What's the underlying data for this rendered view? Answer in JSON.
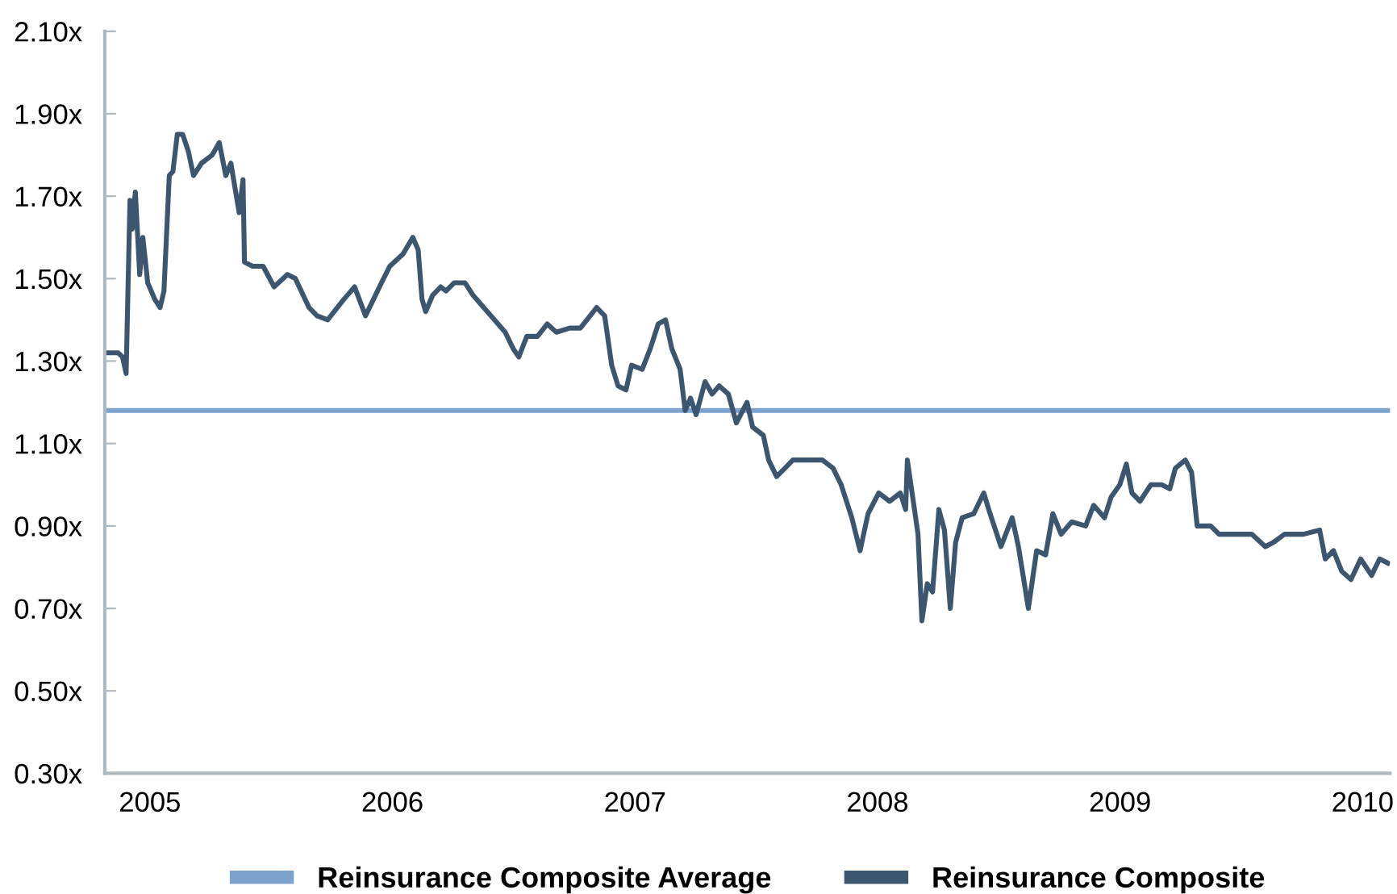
{
  "chart_data": {
    "type": "line",
    "xlim": [
      2004.814,
      2010.113
    ],
    "xticks": [
      2005,
      2006,
      2007,
      2008,
      2009,
      2010
    ],
    "ylim": [
      0.3,
      2.1
    ],
    "yticks": [
      {
        "value": 0.3,
        "label": "0.30x"
      },
      {
        "value": 0.5,
        "label": "0.50x"
      },
      {
        "value": 0.7,
        "label": "0.70x"
      },
      {
        "value": 0.9,
        "label": "0.90x"
      },
      {
        "value": 1.1,
        "label": "1.10x"
      },
      {
        "value": 1.3,
        "label": "1.30x"
      },
      {
        "value": 1.5,
        "label": "1.50x"
      },
      {
        "value": 1.7,
        "label": "1.70x"
      },
      {
        "value": 1.9,
        "label": "1.90x"
      },
      {
        "value": 2.1,
        "label": "2.10x"
      }
    ],
    "grid": false,
    "legend": "bottom",
    "marker": "none",
    "line_style": "solid",
    "series": [
      {
        "name": "Reinsurance Composite Average",
        "color": "#7ba3cc",
        "x": [
          2004.814,
          2010.113
        ],
        "values": [
          1.18,
          1.18
        ]
      },
      {
        "name": "Reinsurance Composite",
        "color": "#3d5670",
        "x": [
          2004.825,
          2004.869,
          2004.887,
          2004.902,
          2004.918,
          2004.927,
          2004.94,
          2004.958,
          2004.971,
          2004.991,
          2005.02,
          2005.042,
          2005.058,
          2005.08,
          2005.095,
          2005.113,
          2005.135,
          2005.158,
          2005.18,
          2005.213,
          2005.235,
          2005.257,
          2005.286,
          2005.313,
          2005.334,
          2005.368,
          2005.384,
          2005.39,
          2005.424,
          2005.467,
          2005.512,
          2005.567,
          2005.6,
          2005.656,
          2005.689,
          2005.733,
          2005.8,
          2005.844,
          2005.889,
          2005.922,
          2005.955,
          2005.989,
          2006.044,
          2006.084,
          2006.106,
          2006.122,
          2006.137,
          2006.166,
          2006.199,
          2006.221,
          2006.255,
          2006.299,
          2006.332,
          2006.376,
          2006.421,
          2006.465,
          2006.498,
          2006.521,
          2006.554,
          2006.598,
          2006.638,
          2006.676,
          2006.731,
          2006.775,
          2006.842,
          2006.875,
          2006.904,
          2006.93,
          2006.963,
          2006.986,
          2007.03,
          2007.063,
          2007.096,
          2007.126,
          2007.152,
          2007.186,
          2007.207,
          2007.229,
          2007.252,
          2007.289,
          2007.318,
          2007.347,
          2007.385,
          2007.418,
          2007.462,
          2007.485,
          2007.529,
          2007.551,
          2007.584,
          2007.618,
          2007.651,
          2007.717,
          2007.773,
          2007.817,
          2007.85,
          2007.894,
          2007.928,
          2007.961,
          2008.005,
          2008.05,
          2008.094,
          2008.116,
          2008.123,
          2008.145,
          2008.167,
          2008.183,
          2008.205,
          2008.227,
          2008.253,
          2008.276,
          2008.3,
          2008.322,
          2008.349,
          2008.397,
          2008.438,
          2008.464,
          2008.509,
          2008.555,
          2008.581,
          2008.622,
          2008.656,
          2008.693,
          2008.723,
          2008.757,
          2008.801,
          2008.858,
          2008.891,
          2008.936,
          2008.963,
          2008.999,
          2009.026,
          2009.049,
          2009.082,
          2009.127,
          2009.172,
          2009.205,
          2009.228,
          2009.269,
          2009.295,
          2009.318,
          2009.374,
          2009.408,
          2009.453,
          2009.487,
          2009.543,
          2009.599,
          2009.632,
          2009.678,
          2009.756,
          2009.823,
          2009.846,
          2009.88,
          2009.914,
          2009.952,
          2009.992,
          2010.037,
          2010.07,
          2010.104
        ],
        "values": [
          1.32,
          1.32,
          1.31,
          1.27,
          1.69,
          1.62,
          1.71,
          1.51,
          1.6,
          1.49,
          1.45,
          1.43,
          1.47,
          1.75,
          1.76,
          1.85,
          1.85,
          1.81,
          1.75,
          1.78,
          1.79,
          1.8,
          1.83,
          1.75,
          1.78,
          1.66,
          1.74,
          1.54,
          1.53,
          1.53,
          1.48,
          1.51,
          1.5,
          1.43,
          1.41,
          1.4,
          1.45,
          1.48,
          1.41,
          1.45,
          1.49,
          1.53,
          1.56,
          1.6,
          1.57,
          1.45,
          1.42,
          1.46,
          1.48,
          1.47,
          1.49,
          1.49,
          1.46,
          1.43,
          1.4,
          1.37,
          1.33,
          1.31,
          1.36,
          1.36,
          1.39,
          1.37,
          1.38,
          1.38,
          1.43,
          1.41,
          1.29,
          1.24,
          1.23,
          1.29,
          1.28,
          1.33,
          1.39,
          1.4,
          1.33,
          1.28,
          1.18,
          1.21,
          1.17,
          1.25,
          1.22,
          1.24,
          1.22,
          1.15,
          1.2,
          1.14,
          1.12,
          1.06,
          1.02,
          1.04,
          1.06,
          1.06,
          1.06,
          1.04,
          1.0,
          0.92,
          0.84,
          0.93,
          0.98,
          0.96,
          0.98,
          0.94,
          1.06,
          0.97,
          0.88,
          0.67,
          0.76,
          0.74,
          0.94,
          0.89,
          0.7,
          0.86,
          0.92,
          0.93,
          0.98,
          0.93,
          0.85,
          0.92,
          0.85,
          0.7,
          0.84,
          0.83,
          0.93,
          0.88,
          0.91,
          0.9,
          0.95,
          0.92,
          0.97,
          1.0,
          1.05,
          0.98,
          0.96,
          1.0,
          1.0,
          0.99,
          1.04,
          1.06,
          1.03,
          0.9,
          0.9,
          0.88,
          0.88,
          0.88,
          0.88,
          0.85,
          0.86,
          0.88,
          0.88,
          0.89,
          0.82,
          0.84,
          0.79,
          0.77,
          0.82,
          0.78,
          0.82,
          0.81
        ]
      }
    ]
  }
}
